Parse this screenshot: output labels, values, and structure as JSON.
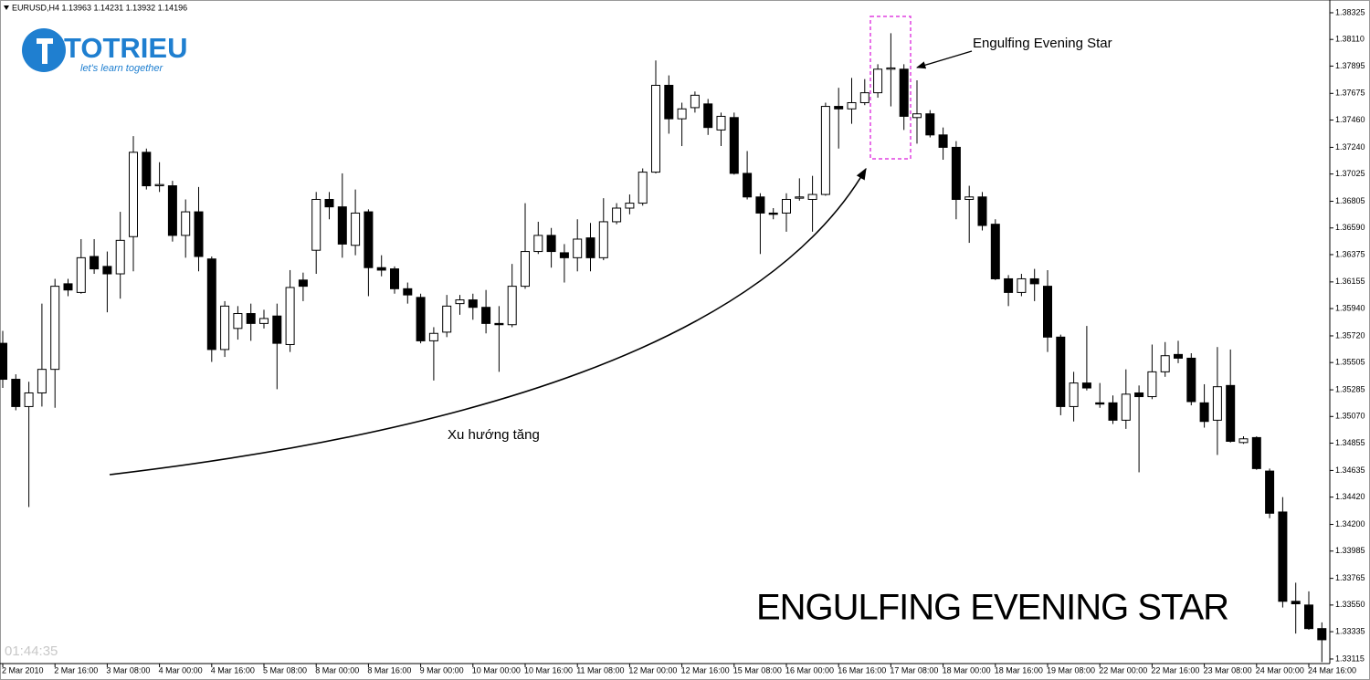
{
  "logo": {
    "name": "TOTRIEU",
    "tagline": "let's learn together"
  },
  "clock": "01:44:35",
  "chart_data": {
    "type": "candlestick",
    "title": "EURUSD,H4  1.13963 1.14231 1.13932 1.14196",
    "annotations": [
      "Engulfing Evening Star",
      "Xu hướng tăng",
      "ENGULFING EVENING STAR"
    ],
    "categories": [
      "2 Mar 2010",
      null,
      null,
      null,
      "2 Mar 16:00",
      null,
      null,
      null,
      "3 Mar 08:00",
      null,
      null,
      null,
      "4 Mar 00:00",
      null,
      null,
      null,
      "4 Mar 16:00",
      null,
      null,
      null,
      "5 Mar 08:00",
      null,
      null,
      null,
      "8 Mar 00:00",
      null,
      null,
      null,
      "8 Mar 16:00",
      null,
      null,
      null,
      "9 Mar 00:00",
      null,
      null,
      null,
      "10 Mar 00:00",
      null,
      null,
      null,
      "10 Mar 16:00",
      null,
      null,
      null,
      "11 Mar 08:00",
      null,
      null,
      null,
      "12 Mar 00:00",
      null,
      null,
      null,
      "12 Mar 16:00",
      null,
      null,
      null,
      "15 Mar 08:00",
      null,
      null,
      null,
      "16 Mar 00:00",
      null,
      null,
      null,
      "16 Mar 16:00",
      null,
      null,
      null,
      "17 Mar 08:00",
      null,
      null,
      null,
      "18 Mar 00:00",
      null,
      null,
      null,
      "18 Mar 16:00",
      null,
      null,
      null,
      "19 Mar 08:00",
      null,
      null,
      null,
      "22 Mar 00:00",
      null,
      null,
      null,
      "22 Mar 16:00",
      null,
      null,
      null,
      "23 Mar 08:00",
      null,
      null,
      null,
      "24 Mar 00:00",
      null,
      null,
      null,
      "24 Mar 16:00",
      null
    ],
    "open": [
      1.3566,
      1.3537,
      1.3515,
      1.3526,
      1.3545,
      1.3614,
      1.3607,
      1.3636,
      1.3628,
      1.3622,
      1.3652,
      1.372,
      1.3693,
      1.3693,
      1.3653,
      1.3672,
      1.3634,
      1.3561,
      1.3578,
      1.359,
      1.3582,
      1.3588,
      1.3565,
      1.3617,
      1.3641,
      1.3682,
      1.3676,
      1.3645,
      1.3672,
      1.3627,
      1.3626,
      1.361,
      1.3603,
      1.3568,
      1.3575,
      1.3598,
      1.3601,
      1.3595,
      1.3582,
      1.3581,
      1.3612,
      1.364,
      1.3653,
      1.3639,
      1.3635,
      1.3651,
      1.3635,
      1.3664,
      1.3675,
      1.3679,
      1.3704,
      1.3774,
      1.3747,
      1.3756,
      1.3759,
      1.3738,
      1.3748,
      1.3703,
      1.3684,
      1.3671,
      1.3671,
      1.3683,
      1.3682,
      1.3686,
      1.3757,
      1.3755,
      1.376,
      1.3768,
      1.3787,
      1.3787,
      1.3748,
      1.3751,
      1.3734,
      1.3724,
      1.3682,
      1.3684,
      1.3662,
      1.3618,
      1.3607,
      1.3618,
      1.3612,
      1.3571,
      1.3515,
      1.3534,
      1.3518,
      1.3518,
      1.3504,
      1.3526,
      1.3523,
      1.3543,
      1.3557,
      1.3554,
      1.3518,
      1.3504,
      1.3532,
      1.3486,
      1.349,
      1.3463,
      1.343,
      1.3358,
      1.3355,
      1.3336
    ],
    "high": [
      1.3576,
      1.3541,
      1.3535,
      1.3598,
      1.3618,
      1.3618,
      1.365,
      1.365,
      1.364,
      1.3672,
      1.3733,
      1.3723,
      1.3712,
      1.3697,
      1.3682,
      1.3692,
      1.3636,
      1.36,
      1.3596,
      1.3598,
      1.3593,
      1.3598,
      1.3625,
      1.3623,
      1.3688,
      1.3688,
      1.3703,
      1.369,
      1.3674,
      1.3637,
      1.3628,
      1.3615,
      1.3606,
      1.3579,
      1.3605,
      1.3605,
      1.3606,
      1.3609,
      1.3596,
      1.363,
      1.3679,
      1.3664,
      1.3659,
      1.3646,
      1.3666,
      1.3663,
      1.3683,
      1.3679,
      1.3686,
      1.3707,
      1.3794,
      1.3782,
      1.376,
      1.3769,
      1.3763,
      1.3752,
      1.3752,
      1.3721,
      1.3687,
      1.3675,
      1.3687,
      1.3699,
      1.3701,
      1.376,
      1.3772,
      1.378,
      1.3779,
      1.3791,
      1.3816,
      1.3791,
      1.3778,
      1.3754,
      1.374,
      1.3729,
      1.3693,
      1.3688,
      1.3666,
      1.3621,
      1.3622,
      1.3626,
      1.3625,
      1.3573,
      1.3543,
      1.358,
      1.3534,
      1.3524,
      1.3545,
      1.3532,
      1.3565,
      1.3567,
      1.3568,
      1.3558,
      1.3533,
      1.3563,
      1.3561,
      1.3491,
      1.3491,
      1.3465,
      1.3442,
      1.3373,
      1.3366,
      1.3341
    ],
    "low": [
      1.353,
      1.3512,
      1.3434,
      1.3515,
      1.3514,
      1.3604,
      1.3606,
      1.3622,
      1.3591,
      1.3602,
      1.3624,
      1.369,
      1.3688,
      1.3648,
      1.3635,
      1.3624,
      1.3551,
      1.3555,
      1.3569,
      1.3568,
      1.3578,
      1.3529,
      1.3559,
      1.36,
      1.3622,
      1.3666,
      1.3635,
      1.3637,
      1.3604,
      1.362,
      1.3606,
      1.3598,
      1.3566,
      1.3536,
      1.3571,
      1.3589,
      1.3585,
      1.3574,
      1.3543,
      1.3579,
      1.361,
      1.3638,
      1.3627,
      1.3615,
      1.3624,
      1.3624,
      1.3633,
      1.3662,
      1.367,
      1.3677,
      1.3703,
      1.3735,
      1.3725,
      1.3752,
      1.3734,
      1.3725,
      1.3702,
      1.3682,
      1.3638,
      1.3666,
      1.3656,
      1.3681,
      1.3656,
      1.3685,
      1.3723,
      1.3743,
      1.3758,
      1.3764,
      1.3757,
      1.3738,
      1.3727,
      1.3732,
      1.3714,
      1.3666,
      1.3647,
      1.3657,
      1.3617,
      1.3596,
      1.3604,
      1.36,
      1.3559,
      1.3508,
      1.3503,
      1.3528,
      1.3514,
      1.3501,
      1.3497,
      1.3462,
      1.3521,
      1.3539,
      1.355,
      1.3516,
      1.3498,
      1.3476,
      1.3486,
      1.3485,
      1.3464,
      1.3425,
      1.3353,
      1.3332,
      1.3335,
      1.3309
    ],
    "close": [
      1.3537,
      1.3515,
      1.3526,
      1.3545,
      1.3612,
      1.3609,
      1.3635,
      1.3626,
      1.3622,
      1.3649,
      1.372,
      1.3693,
      1.3694,
      1.3653,
      1.3672,
      1.3636,
      1.3561,
      1.3596,
      1.359,
      1.3582,
      1.3586,
      1.3566,
      1.3611,
      1.3612,
      1.3682,
      1.3676,
      1.3646,
      1.3671,
      1.3627,
      1.3625,
      1.361,
      1.3605,
      1.3568,
      1.3574,
      1.3596,
      1.3601,
      1.3595,
      1.3582,
      1.3581,
      1.3612,
      1.364,
      1.3653,
      1.364,
      1.3635,
      1.365,
      1.3635,
      1.3664,
      1.3675,
      1.3679,
      1.3704,
      1.3774,
      1.3747,
      1.3755,
      1.3766,
      1.374,
      1.3749,
      1.3703,
      1.3684,
      1.3671,
      1.367,
      1.3682,
      1.3684,
      1.3686,
      1.3757,
      1.3755,
      1.376,
      1.3768,
      1.3787,
      1.3788,
      1.3749,
      1.3751,
      1.3734,
      1.3724,
      1.3682,
      1.3684,
      1.3661,
      1.3618,
      1.3607,
      1.3618,
      1.3614,
      1.3571,
      1.3515,
      1.3534,
      1.353,
      1.3517,
      1.3504,
      1.3525,
      1.3523,
      1.3543,
      1.3556,
      1.3554,
      1.3519,
      1.3503,
      1.3531,
      1.3487,
      1.3489,
      1.3465,
      1.3429,
      1.3358,
      1.3356,
      1.3336,
      1.3327
    ],
    "up_color": "#ffffff",
    "down_color": "#000000",
    "ylim": [
      1.33078,
      1.38391
    ],
    "yticks": [
      1.38325,
      {
        "value": 1.3811,
        "label": "1.38110"
      },
      1.37895,
      1.37675,
      {
        "value": 1.3746,
        "label": "1.37460"
      },
      {
        "value": 1.3724,
        "label": "1.37240"
      },
      1.37025,
      1.36805,
      {
        "value": 1.3659,
        "label": "1.36590"
      },
      1.36375,
      1.36155,
      {
        "value": 1.3594,
        "label": "1.35940"
      },
      {
        "value": 1.3572,
        "label": "1.35720"
      },
      1.35505,
      1.35285,
      {
        "value": 1.3507,
        "label": "1.35070"
      },
      1.34855,
      1.34635,
      {
        "value": 1.3442,
        "label": "1.34420"
      },
      {
        "value": 1.342,
        "label": "1.34200"
      },
      1.33985,
      1.33765,
      {
        "value": 1.3355,
        "label": "1.33550"
      },
      1.33335,
      1.33115
    ],
    "grid": false
  }
}
